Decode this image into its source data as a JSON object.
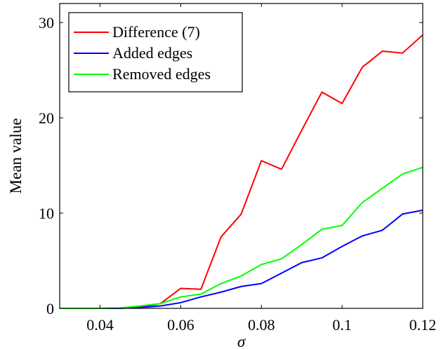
{
  "chart_data": {
    "type": "line",
    "title": "",
    "xlabel": "σ",
    "ylabel": "Mean value",
    "xlim": [
      0.03,
      0.12
    ],
    "ylim": [
      0,
      32
    ],
    "x_ticks": [
      0.04,
      0.06,
      0.08,
      0.1,
      0.12
    ],
    "x_tick_labels": [
      "0.04",
      "0.06",
      "0.08",
      "0.1",
      "0.12"
    ],
    "y_ticks": [
      0,
      10,
      20,
      30
    ],
    "y_tick_labels": [
      "0",
      "10",
      "20",
      "30"
    ],
    "grid": false,
    "legend_position": "top-left",
    "x": [
      0.03,
      0.035,
      0.04,
      0.045,
      0.05,
      0.055,
      0.06,
      0.065,
      0.07,
      0.075,
      0.08,
      0.085,
      0.09,
      0.095,
      0.1,
      0.105,
      0.11,
      0.115,
      0.12
    ],
    "series": [
      {
        "name": "Difference (7)",
        "color": "#ff0000",
        "values": [
          0,
          0,
          0,
          0.02,
          0.1,
          0.5,
          2.1,
          2.0,
          7.5,
          9.9,
          15.5,
          14.6,
          18.7,
          22.7,
          21.5,
          25.3,
          27.0,
          26.8,
          28.7
        ]
      },
      {
        "name": "Added edges",
        "color": "#0000ff",
        "values": [
          0,
          0,
          0,
          0,
          0.1,
          0.25,
          0.6,
          1.2,
          1.7,
          2.3,
          2.6,
          3.7,
          4.8,
          5.3,
          6.5,
          7.6,
          8.2,
          9.9,
          10.3
        ]
      },
      {
        "name": "Removed edges",
        "color": "#00ff00",
        "values": [
          0,
          0,
          0,
          0.05,
          0.25,
          0.5,
          1.2,
          1.5,
          2.6,
          3.4,
          4.6,
          5.2,
          6.7,
          8.3,
          8.7,
          11.1,
          12.6,
          14.1,
          14.8
        ]
      }
    ]
  }
}
